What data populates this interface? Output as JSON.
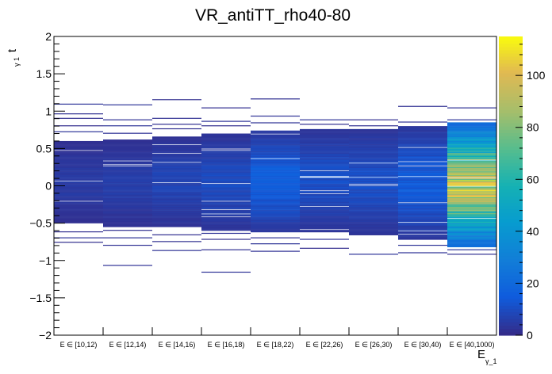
{
  "chart_data": {
    "type": "heatmap",
    "title": "VR_antiTT_rho40-80",
    "xlabel": "E",
    "xlabel_sub": "γ_1",
    "ylabel": "t",
    "ylabel_sub": "γ 1",
    "categories": [
      "E ∈ [10,12)",
      "E ∈ [12,14)",
      "E ∈ [14,16)",
      "E ∈ [16,18)",
      "E ∈ [18,22)",
      "E ∈ [22,26)",
      "E ∈ [26,30)",
      "E ∈ [30,40)",
      "E ∈ [40,1000)"
    ],
    "ylim": [
      -2,
      2
    ],
    "yticks": [
      -2,
      -1.5,
      -1,
      -0.5,
      0,
      0.5,
      1,
      1.5,
      2
    ],
    "ytick_labels": [
      "−2",
      "−1.5",
      "−1",
      "−0.5",
      "0",
      "0.5",
      "1",
      "1.5",
      "2"
    ],
    "zlim": [
      0,
      115
    ],
    "zticks": [
      0,
      20,
      40,
      60,
      80,
      100
    ],
    "ybin_width": 0.01,
    "columns": [
      {
        "category": "E ∈ [10,12)",
        "t_min": -0.76,
        "t_max": 1.09,
        "core": [
          -0.5,
          0.6
        ],
        "peak": 4,
        "outliers": [
          -0.76,
          -0.7,
          -0.62,
          0.72,
          0.8,
          0.9,
          0.96,
          1.09
        ]
      },
      {
        "category": "E ∈ [12,14)",
        "t_min": -1.07,
        "t_max": 1.08,
        "core": [
          -0.55,
          0.62
        ],
        "peak": 5,
        "outliers": [
          -1.07,
          -0.8,
          -0.7,
          -0.6,
          0.7,
          0.8,
          0.88,
          1.08
        ]
      },
      {
        "category": "E ∈ [14,16)",
        "t_min": -0.87,
        "t_max": 1.15,
        "core": [
          -0.55,
          0.66
        ],
        "peak": 7,
        "outliers": [
          -0.87,
          -0.75,
          -0.66,
          0.76,
          0.82,
          0.9,
          1.15
        ]
      },
      {
        "category": "E ∈ [16,18)",
        "t_min": -1.16,
        "t_max": 1.04,
        "core": [
          -0.6,
          0.7
        ],
        "peak": 9,
        "outliers": [
          -1.16,
          -0.86,
          -0.72,
          -0.64,
          0.8,
          0.86,
          1.04
        ]
      },
      {
        "category": "E ∈ [18,22)",
        "t_min": -0.88,
        "t_max": 1.16,
        "core": [
          -0.62,
          0.74
        ],
        "peak": 15,
        "outliers": [
          -0.88,
          -0.78,
          -0.7,
          0.84,
          0.93,
          1.16
        ]
      },
      {
        "category": "E ∈ [22,26)",
        "t_min": -0.84,
        "t_max": 0.88,
        "core": [
          -0.62,
          0.76
        ],
        "peak": 10,
        "outliers": [
          -0.84,
          -0.72,
          0.82,
          0.88
        ]
      },
      {
        "category": "E ∈ [26,30)",
        "t_min": -0.92,
        "t_max": 0.88,
        "core": [
          -0.65,
          0.76
        ],
        "peak": 10,
        "outliers": [
          -0.92,
          -0.66,
          0.8,
          0.88
        ]
      },
      {
        "category": "E ∈ [30,40)",
        "t_min": -0.9,
        "t_max": 1.06,
        "core": [
          -0.72,
          0.8
        ],
        "peak": 14,
        "outliers": [
          -0.9,
          -0.8,
          0.85,
          1.06
        ]
      },
      {
        "category": "E ∈ [40,1000)",
        "t_min": -0.92,
        "t_max": 1.04,
        "core": [
          -0.82,
          0.85
        ],
        "peak": 90,
        "outliers": [
          -0.92,
          -0.86,
          0.88,
          1.04
        ]
      }
    ]
  }
}
